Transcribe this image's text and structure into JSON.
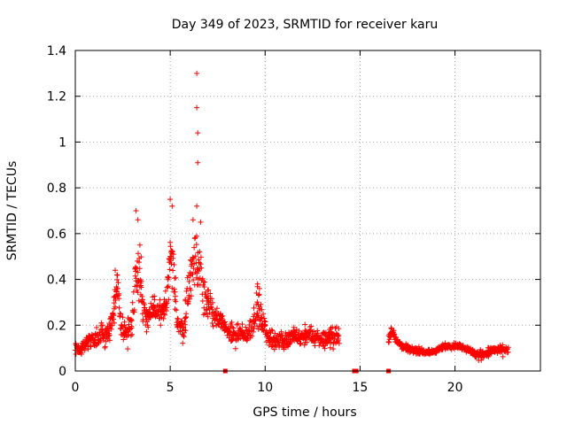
{
  "chart_data": {
    "type": "scatter",
    "title": "Day 349 of 2023, SRMTID for receiver karu",
    "xlabel": "GPS time / hours",
    "ylabel": "SRMTID / TECUs",
    "xlim": [
      0,
      24.5
    ],
    "ylim": [
      0,
      1.4
    ],
    "xticks": [
      "0",
      "5",
      "10",
      "15",
      "20"
    ],
    "xtick_values": [
      0,
      5,
      10,
      15,
      20
    ],
    "yticks": [
      "0",
      "0.2",
      "0.4",
      "0.6",
      "0.8",
      "1",
      "1.2",
      "1.4"
    ],
    "ytick_values": [
      0,
      0.2,
      0.4,
      0.6,
      0.8,
      1.0,
      1.2,
      1.4
    ],
    "grid": true,
    "marker": "plus",
    "color": "#ff0000",
    "envelope": [
      [
        0.0,
        0.1,
        0.04
      ],
      [
        0.3,
        0.1,
        0.05
      ],
      [
        0.6,
        0.13,
        0.06
      ],
      [
        0.9,
        0.14,
        0.06
      ],
      [
        1.2,
        0.14,
        0.07
      ],
      [
        1.5,
        0.16,
        0.08
      ],
      [
        1.8,
        0.17,
        0.08
      ],
      [
        2.0,
        0.26,
        0.12
      ],
      [
        2.2,
        0.36,
        0.1
      ],
      [
        2.4,
        0.2,
        0.08
      ],
      [
        2.7,
        0.16,
        0.08
      ],
      [
        3.0,
        0.22,
        0.1
      ],
      [
        3.2,
        0.45,
        0.15
      ],
      [
        3.4,
        0.45,
        0.18
      ],
      [
        3.6,
        0.25,
        0.1
      ],
      [
        3.9,
        0.24,
        0.08
      ],
      [
        4.2,
        0.27,
        0.08
      ],
      [
        4.5,
        0.25,
        0.08
      ],
      [
        4.8,
        0.28,
        0.1
      ],
      [
        5.0,
        0.5,
        0.2
      ],
      [
        5.2,
        0.4,
        0.18
      ],
      [
        5.4,
        0.2,
        0.08
      ],
      [
        5.7,
        0.18,
        0.08
      ],
      [
        6.0,
        0.4,
        0.15
      ],
      [
        6.3,
        0.48,
        0.18
      ],
      [
        6.6,
        0.45,
        0.18
      ],
      [
        6.9,
        0.3,
        0.12
      ],
      [
        7.2,
        0.27,
        0.1
      ],
      [
        7.5,
        0.22,
        0.08
      ],
      [
        7.8,
        0.2,
        0.06
      ],
      [
        8.1,
        0.17,
        0.06
      ],
      [
        8.4,
        0.15,
        0.06
      ],
      [
        8.7,
        0.16,
        0.06
      ],
      [
        9.0,
        0.15,
        0.05
      ],
      [
        9.3,
        0.2,
        0.08
      ],
      [
        9.6,
        0.28,
        0.12
      ],
      [
        9.8,
        0.22,
        0.08
      ],
      [
        10.1,
        0.16,
        0.06
      ],
      [
        10.4,
        0.13,
        0.06
      ],
      [
        10.7,
        0.14,
        0.06
      ],
      [
        11.0,
        0.13,
        0.06
      ],
      [
        11.3,
        0.14,
        0.06
      ],
      [
        11.6,
        0.15,
        0.06
      ],
      [
        11.9,
        0.14,
        0.06
      ],
      [
        12.2,
        0.16,
        0.06
      ],
      [
        12.5,
        0.15,
        0.06
      ],
      [
        12.8,
        0.14,
        0.06
      ],
      [
        13.1,
        0.14,
        0.06
      ],
      [
        13.4,
        0.15,
        0.06
      ],
      [
        13.7,
        0.15,
        0.06
      ],
      [
        13.9,
        0.14,
        0.06
      ],
      [
        16.5,
        0.14,
        0.04
      ],
      [
        16.7,
        0.18,
        0.04
      ],
      [
        16.9,
        0.14,
        0.03
      ],
      [
        17.2,
        0.11,
        0.02
      ],
      [
        17.5,
        0.1,
        0.02
      ],
      [
        17.8,
        0.09,
        0.02
      ],
      [
        18.1,
        0.09,
        0.02
      ],
      [
        18.4,
        0.08,
        0.02
      ],
      [
        18.7,
        0.08,
        0.02
      ],
      [
        19.0,
        0.09,
        0.02
      ],
      [
        19.3,
        0.1,
        0.02
      ],
      [
        19.6,
        0.11,
        0.02
      ],
      [
        19.9,
        0.11,
        0.02
      ],
      [
        20.2,
        0.11,
        0.02
      ],
      [
        20.5,
        0.1,
        0.02
      ],
      [
        20.8,
        0.09,
        0.02
      ],
      [
        21.1,
        0.07,
        0.03
      ],
      [
        21.4,
        0.07,
        0.03
      ],
      [
        21.7,
        0.08,
        0.03
      ],
      [
        22.0,
        0.09,
        0.03
      ],
      [
        22.3,
        0.09,
        0.03
      ],
      [
        22.6,
        0.09,
        0.03
      ],
      [
        22.8,
        0.09,
        0.03
      ]
    ],
    "spikes": [
      [
        2.1,
        0.44
      ],
      [
        2.2,
        0.42
      ],
      [
        3.2,
        0.7
      ],
      [
        3.3,
        0.66
      ],
      [
        3.4,
        0.55
      ],
      [
        5.0,
        0.75
      ],
      [
        5.1,
        0.72
      ],
      [
        6.2,
        0.66
      ],
      [
        6.4,
        0.72
      ],
      [
        6.6,
        0.65
      ],
      [
        6.4,
        1.3
      ],
      [
        6.4,
        1.15
      ],
      [
        6.45,
        1.04
      ],
      [
        6.45,
        0.91
      ],
      [
        9.6,
        0.38
      ],
      [
        9.7,
        0.36
      ]
    ],
    "zeros": [
      7.9,
      14.7,
      14.8,
      16.5
    ],
    "segments": [
      [
        0.0,
        13.9
      ],
      [
        16.5,
        22.8
      ]
    ]
  }
}
